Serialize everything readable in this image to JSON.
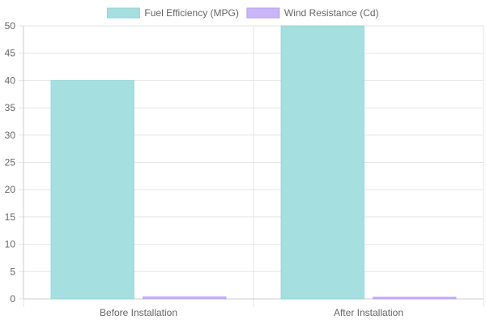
{
  "chart_data": {
    "type": "bar",
    "categories": [
      "Before Installation",
      "After Installation"
    ],
    "series": [
      {
        "name": "Fuel Efficiency (MPG)",
        "values": [
          40,
          50
        ],
        "color": "#a6dfdf",
        "border_color": "#93d6d6"
      },
      {
        "name": "Wind Resistance (Cd)",
        "values": [
          0.35,
          0.28
        ],
        "color": "#c9b6f8",
        "border_color": "#b79ff5"
      }
    ],
    "title": "",
    "xlabel": "",
    "ylabel": "",
    "ylim": [
      0,
      50
    ],
    "yticks": [
      0,
      5,
      10,
      15,
      20,
      25,
      30,
      35,
      40,
      45,
      50
    ],
    "grid": true,
    "legend": "top-center"
  }
}
